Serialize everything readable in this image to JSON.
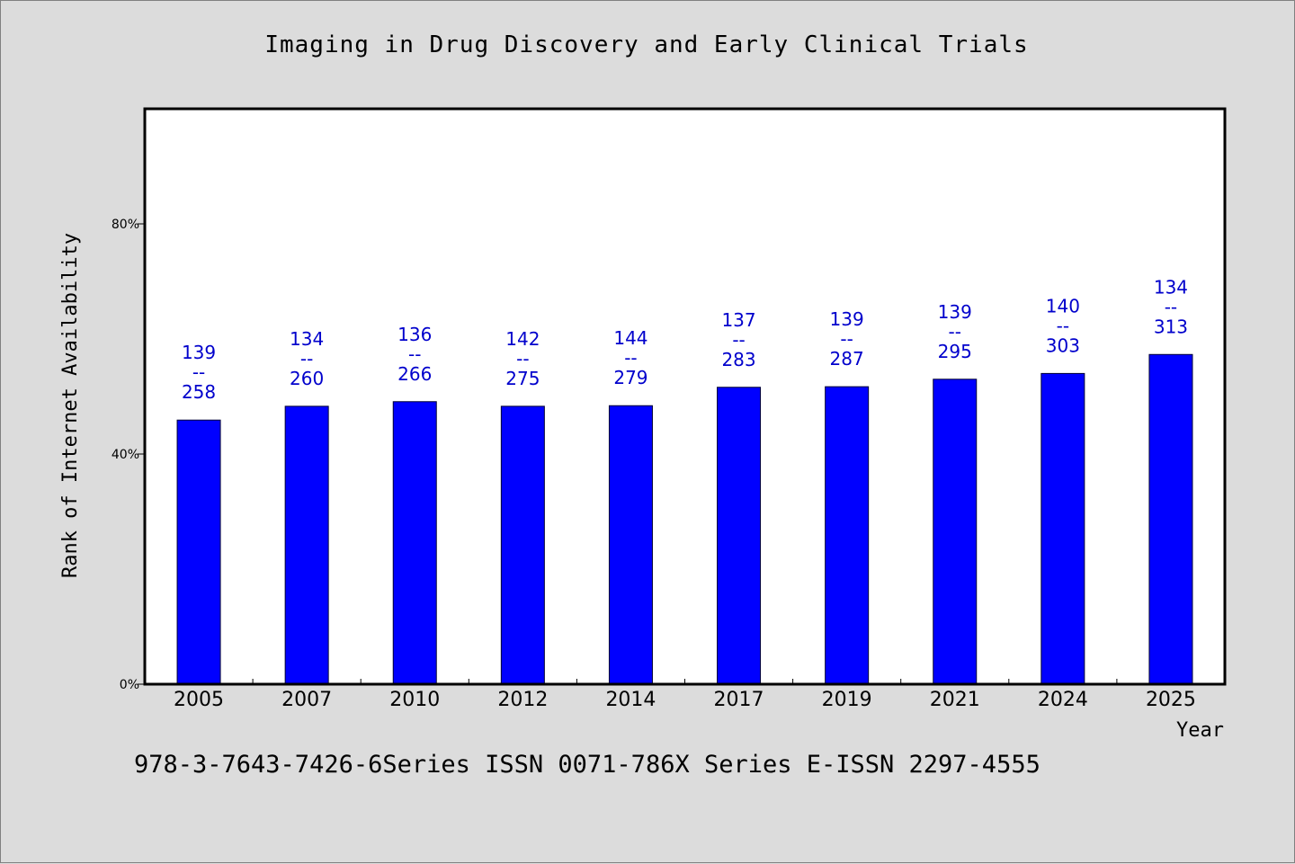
{
  "chart_data": {
    "type": "bar",
    "title": "Imaging in Drug Discovery and Early Clinical Trials",
    "xlabel": "Year",
    "ylabel": "Rank of Internet Availability",
    "ylim": [
      0,
      100
    ],
    "yticks": [
      {
        "value": 0,
        "label": "0%"
      },
      {
        "value": 40,
        "label": "40%"
      },
      {
        "value": 80,
        "label": "80%"
      }
    ],
    "grid": false,
    "legend": "none",
    "categories": [
      "2005",
      "2007",
      "2010",
      "2012",
      "2014",
      "2017",
      "2019",
      "2021",
      "2024",
      "2025"
    ],
    "values": [
      45.9,
      48.3,
      49.1,
      48.3,
      48.4,
      51.6,
      51.7,
      53.0,
      54.0,
      57.3
    ],
    "annotations": [
      {
        "top": "139",
        "sep": "--",
        "bottom": "258"
      },
      {
        "top": "134",
        "sep": "--",
        "bottom": "260"
      },
      {
        "top": "136",
        "sep": "--",
        "bottom": "266"
      },
      {
        "top": "142",
        "sep": "--",
        "bottom": "275"
      },
      {
        "top": "144",
        "sep": "--",
        "bottom": "279"
      },
      {
        "top": "137",
        "sep": "--",
        "bottom": "283"
      },
      {
        "top": "139",
        "sep": "--",
        "bottom": "287"
      },
      {
        "top": "139",
        "sep": "--",
        "bottom": "295"
      },
      {
        "top": "140",
        "sep": "--",
        "bottom": "303"
      },
      {
        "top": "134",
        "sep": "--",
        "bottom": "313"
      }
    ],
    "bar_color": "#0000ff",
    "label_color": "#0000cc"
  },
  "footer": {
    "text": "978-3-7643-7426-6Series ISSN 0071-786X Series E-ISSN 2297-4555"
  }
}
